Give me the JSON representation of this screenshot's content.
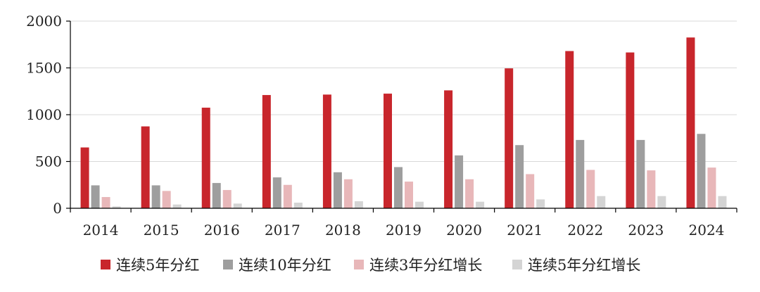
{
  "chart_data": {
    "type": "bar",
    "categories": [
      "2014",
      "2015",
      "2016",
      "2017",
      "2018",
      "2019",
      "2020",
      "2021",
      "2022",
      "2023",
      "2024"
    ],
    "ylim": [
      0,
      2000
    ],
    "yticks": [
      0,
      500,
      1000,
      1500,
      2000
    ],
    "grid": true,
    "legend_position": "bottom",
    "series": [
      {
        "name": "连续5年分红",
        "color": "#c8262c",
        "values": [
          650,
          875,
          1075,
          1210,
          1215,
          1225,
          1260,
          1495,
          1680,
          1665,
          1825
        ]
      },
      {
        "name": "连续10年分红",
        "color": "#9e9e9e",
        "values": [
          245,
          245,
          270,
          330,
          385,
          440,
          565,
          675,
          730,
          730,
          795
        ]
      },
      {
        "name": "连续3年分红增长",
        "color": "#e8b7b9",
        "values": [
          120,
          185,
          195,
          250,
          310,
          285,
          310,
          365,
          410,
          405,
          435
        ]
      },
      {
        "name": "连续5年分红增长",
        "color": "#d4d4d4",
        "values": [
          20,
          40,
          50,
          60,
          75,
          70,
          70,
          95,
          130,
          130,
          130
        ]
      }
    ]
  }
}
